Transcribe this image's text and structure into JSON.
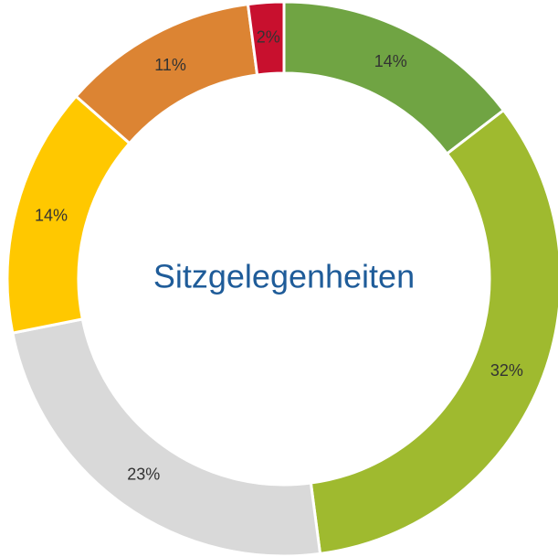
{
  "chart_data": {
    "type": "donut",
    "title": "Sitzgelegenheiten",
    "values": [
      14,
      32,
      23,
      14,
      11,
      2
    ],
    "value_labels": [
      "14%",
      "32%",
      "23%",
      "14%",
      "11%",
      "2%"
    ],
    "colors": [
      "#70a443",
      "#9fba2f",
      "#d9d9d9",
      "#ffc800",
      "#dc8433",
      "#c8102e"
    ]
  }
}
